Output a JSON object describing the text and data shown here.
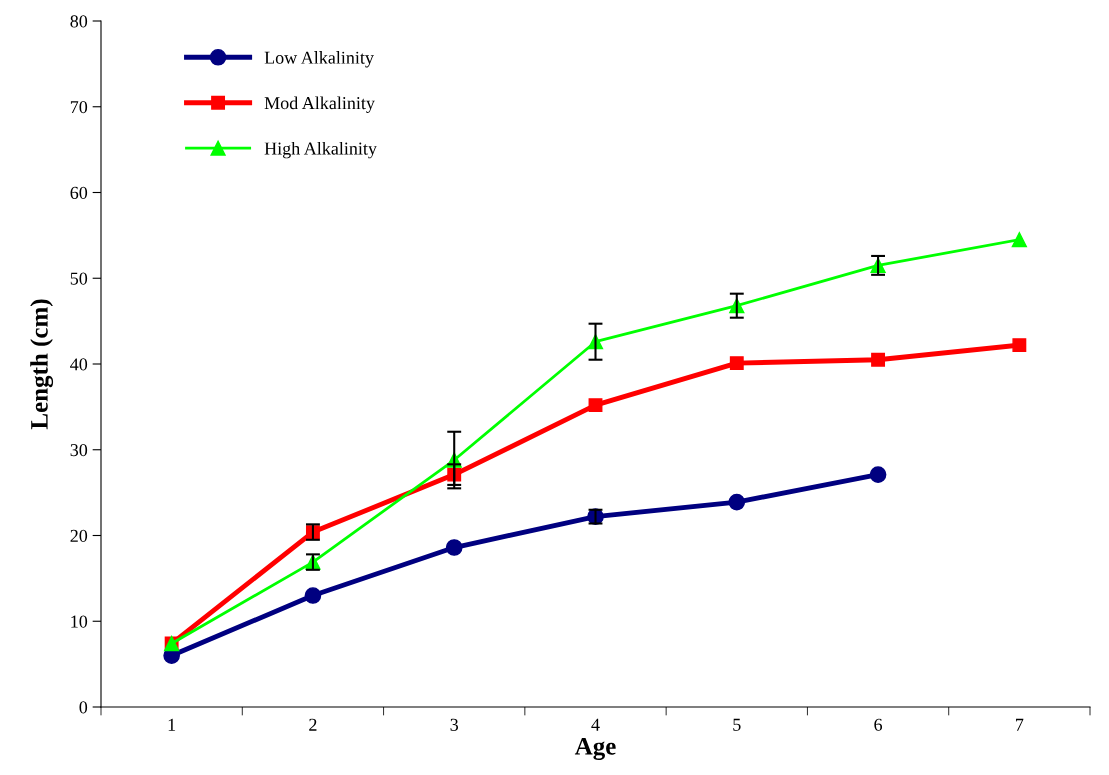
{
  "chart_data": {
    "type": "line",
    "xlabel": "Age",
    "ylabel": "Length (cm)",
    "categories": [
      "1",
      "2",
      "3",
      "4",
      "5",
      "6",
      "7"
    ],
    "ylim": [
      0,
      80
    ],
    "yticks": [
      0,
      10,
      20,
      30,
      40,
      50,
      60,
      70,
      80
    ],
    "grid": false,
    "legend": "top left",
    "series": [
      {
        "name": "Low Alkalinity",
        "color": "#000080",
        "marker": "circle",
        "values": [
          6.0,
          13.0,
          18.6,
          22.2,
          23.9,
          27.1,
          null
        ],
        "errors": [
          null,
          null,
          null,
          0.8,
          null,
          null,
          null
        ]
      },
      {
        "name": "Mod Alkalinity",
        "color": "#ff0000",
        "marker": "square",
        "values": [
          7.4,
          20.4,
          27.1,
          35.2,
          40.1,
          40.5,
          42.2
        ],
        "errors": [
          null,
          0.9,
          1.2,
          null,
          null,
          null,
          null
        ]
      },
      {
        "name": "High Alkalinity",
        "color": "#00ff00",
        "marker": "triangle",
        "values": [
          7.4,
          16.9,
          28.8,
          42.6,
          46.8,
          51.5,
          54.5
        ],
        "errors": [
          null,
          0.9,
          3.3,
          2.1,
          1.4,
          1.1,
          null
        ]
      }
    ]
  }
}
